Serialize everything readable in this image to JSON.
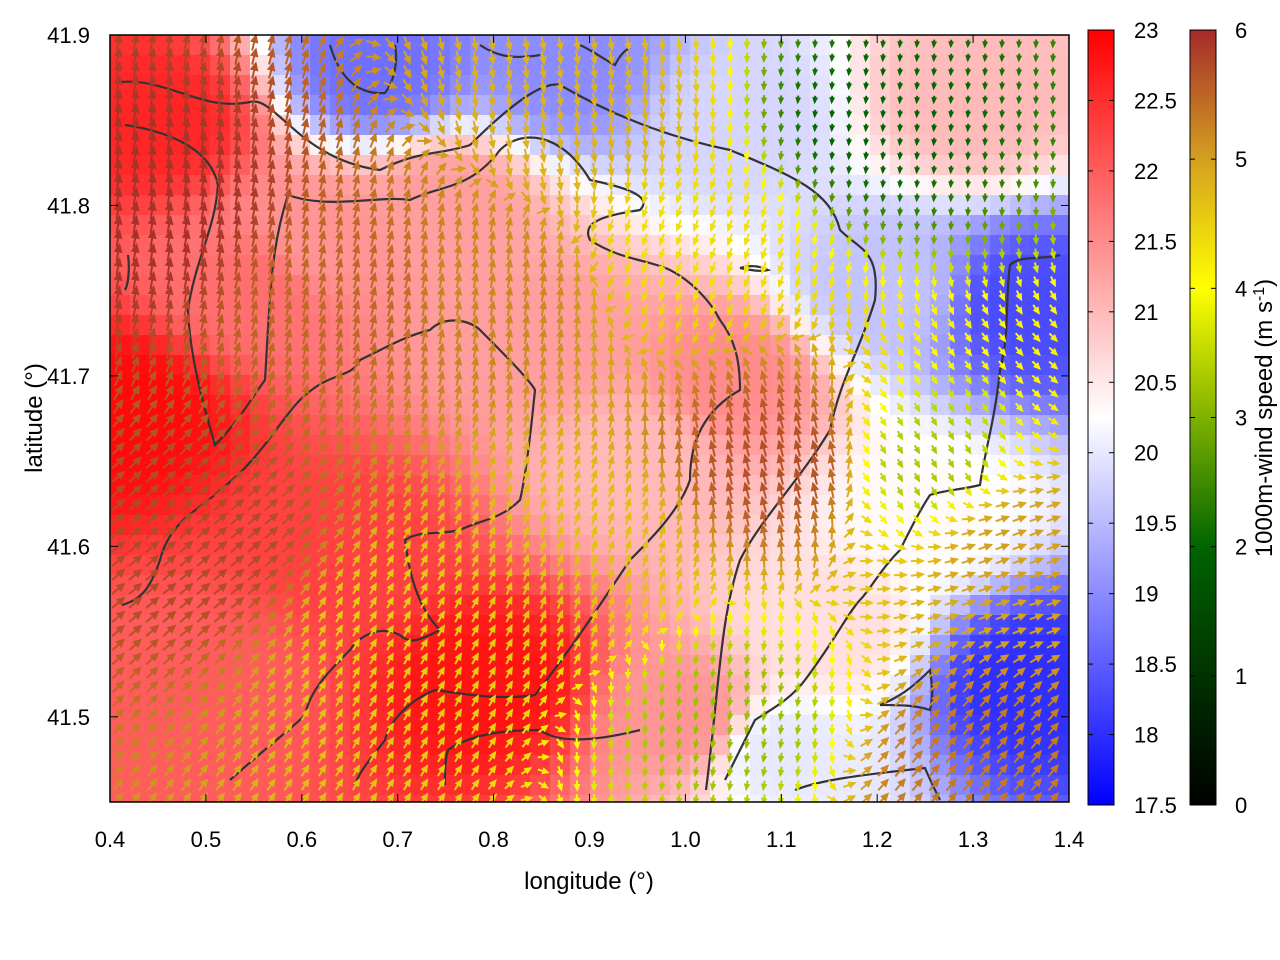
{
  "chart_data": {
    "type": "heatmap",
    "xlabel": "longitude (°)",
    "ylabel": "latitude (°)",
    "xlim": [
      0.4,
      1.4
    ],
    "ylim": [
      41.45,
      41.9
    ],
    "x_ticks": [
      "0.4",
      "0.5",
      "0.6",
      "0.7",
      "0.8",
      "0.9",
      "1.0",
      "1.1",
      "1.2",
      "1.3",
      "1.4"
    ],
    "y_ticks": [
      "41.5",
      "41.6",
      "41.7",
      "41.8",
      "41.9"
    ],
    "grid": false,
    "temperature_colorbar": {
      "range": [
        17.5,
        23
      ],
      "ticks": [
        "17.5",
        "18",
        "18.5",
        "19",
        "19.5",
        "20",
        "20.5",
        "21",
        "21.5",
        "22",
        "22.5",
        "23"
      ],
      "colors": [
        "#0000ff",
        "#ffffff",
        "#ff0000"
      ]
    },
    "wind_colorbar": {
      "label_main": "1000m-wind speed (m s",
      "label_sup": "-1",
      "label_end": ")",
      "range": [
        0,
        6
      ],
      "ticks": [
        "0",
        "1",
        "2",
        "3",
        "4",
        "5",
        "6"
      ],
      "colors": [
        "#000000",
        "#006400",
        "#ffff00",
        "#d4a020",
        "#a52a2a"
      ]
    },
    "temperature_field_samples": [
      {
        "lon": 0.42,
        "lat": 41.68,
        "value": 22.9
      },
      {
        "lon": 0.45,
        "lat": 41.85,
        "value": 22.6
      },
      {
        "lon": 0.55,
        "lat": 41.75,
        "value": 21.8
      },
      {
        "lon": 0.65,
        "lat": 41.6,
        "value": 22.3
      },
      {
        "lon": 0.8,
        "lat": 41.52,
        "value": 22.8
      },
      {
        "lon": 0.75,
        "lat": 41.8,
        "value": 21.3
      },
      {
        "lon": 0.95,
        "lat": 41.65,
        "value": 21.0
      },
      {
        "lon": 1.05,
        "lat": 41.85,
        "value": 19.8
      },
      {
        "lon": 0.88,
        "lat": 41.88,
        "value": 19.0
      },
      {
        "lon": 0.68,
        "lat": 41.88,
        "value": 18.7
      },
      {
        "lon": 1.3,
        "lat": 41.86,
        "value": 21.0
      },
      {
        "lon": 1.36,
        "lat": 41.74,
        "value": 18.3
      },
      {
        "lon": 1.36,
        "lat": 41.52,
        "value": 18.0
      },
      {
        "lon": 1.15,
        "lat": 41.55,
        "value": 20.6
      },
      {
        "lon": 1.1,
        "lat": 41.48,
        "value": 20.0
      },
      {
        "lon": 1.25,
        "lat": 41.62,
        "value": 20.3
      },
      {
        "lon": 0.5,
        "lat": 41.52,
        "value": 22.0
      },
      {
        "lon": 1.0,
        "lat": 41.5,
        "value": 21.4
      },
      {
        "lon": 1.2,
        "lat": 41.75,
        "value": 19.6
      },
      {
        "lon": 1.05,
        "lat": 41.7,
        "value": 21.5
      },
      {
        "lon": 0.85,
        "lat": 41.72,
        "value": 21.3
      },
      {
        "lon": 0.62,
        "lat": 41.78,
        "value": 21.4
      }
    ],
    "wind_field_samples": [
      {
        "lon": 0.45,
        "lat": 41.8,
        "speed": 5.9,
        "dir_deg": 10
      },
      {
        "lon": 0.5,
        "lat": 41.6,
        "speed": 5.6,
        "dir_deg": 50
      },
      {
        "lon": 0.65,
        "lat": 41.75,
        "speed": 5.2,
        "dir_deg": 15
      },
      {
        "lon": 0.8,
        "lat": 41.75,
        "speed": 4.8,
        "dir_deg": 10
      },
      {
        "lon": 0.7,
        "lat": 41.55,
        "speed": 3.8,
        "dir_deg": 30
      },
      {
        "lon": 0.9,
        "lat": 41.6,
        "speed": 4.0,
        "dir_deg": 20
      },
      {
        "lon": 1.0,
        "lat": 41.78,
        "speed": 3.5,
        "dir_deg": 200
      },
      {
        "lon": 1.2,
        "lat": 41.85,
        "speed": 1.5,
        "dir_deg": 185
      },
      {
        "lon": 1.25,
        "lat": 41.65,
        "speed": 2.5,
        "dir_deg": 150
      },
      {
        "lon": 1.05,
        "lat": 41.5,
        "speed": 2.4,
        "dir_deg": 190
      },
      {
        "lon": 1.1,
        "lat": 41.65,
        "speed": 5.5,
        "dir_deg": 345
      },
      {
        "lon": 1.35,
        "lat": 41.6,
        "speed": 4.5,
        "dir_deg": 70
      },
      {
        "lon": 0.9,
        "lat": 41.85,
        "speed": 4.2,
        "dir_deg": 170
      },
      {
        "lon": 1.3,
        "lat": 41.47,
        "speed": 5.0,
        "dir_deg": 40
      }
    ]
  }
}
